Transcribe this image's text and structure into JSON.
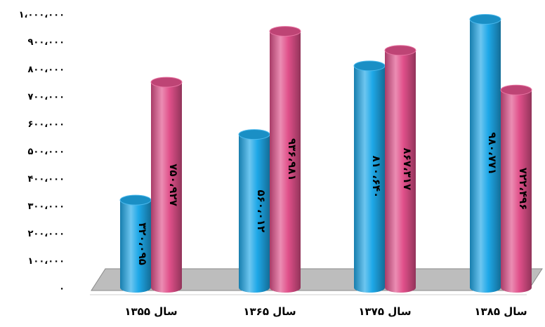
{
  "chart_data": {
    "type": "bar",
    "style": "3d-cylinder",
    "categories": [
      "سال ۱۳۵۵",
      "سال ۱۳۶۵",
      "سال ۱۳۷۵",
      "سال ۱۳۸۵"
    ],
    "series": [
      {
        "color": "#1ea8e8",
        "values": [
          320095,
          560012,
          810640,
          980771
        ],
        "labels": [
          "۳۲۰،۰۹۵",
          "۵۶۰،۰۱۲",
          "۸۱۰،۶۴۰",
          "۹۸۰،۷۷۱"
        ]
      },
      {
        "color": "#e0508a",
        "values": [
          750927,
          936981,
          867317,
          722496
        ],
        "labels": [
          "۷۵۰،۹۲۷",
          "۹۳۶،۹۸۱",
          "۸۶۷،۳۱۷",
          "۷۲۲،۴۹۶"
        ]
      }
    ],
    "ylim": [
      0,
      1000000
    ],
    "yticks": [
      {
        "value": 0,
        "label": "۰"
      },
      {
        "value": 100000,
        "label": "۱۰۰،۰۰۰"
      },
      {
        "value": 200000,
        "label": "۲۰۰،۰۰۰"
      },
      {
        "value": 300000,
        "label": "۳۰۰،۰۰۰"
      },
      {
        "value": 400000,
        "label": "۴۰۰،۰۰۰"
      },
      {
        "value": 500000,
        "label": "۵۰۰،۰۰۰"
      },
      {
        "value": 600000,
        "label": "۶۰۰،۰۰۰"
      },
      {
        "value": 700000,
        "label": "۷۰۰،۰۰۰"
      },
      {
        "value": 800000,
        "label": "۸۰۰،۰۰۰"
      },
      {
        "value": 900000,
        "label": "۹۰۰،۰۰۰"
      },
      {
        "value": 1000000,
        "label": "۱،۰۰۰،۰۰۰"
      }
    ],
    "grid": false,
    "legend": "none",
    "floor_color": "#bdbdbd"
  }
}
